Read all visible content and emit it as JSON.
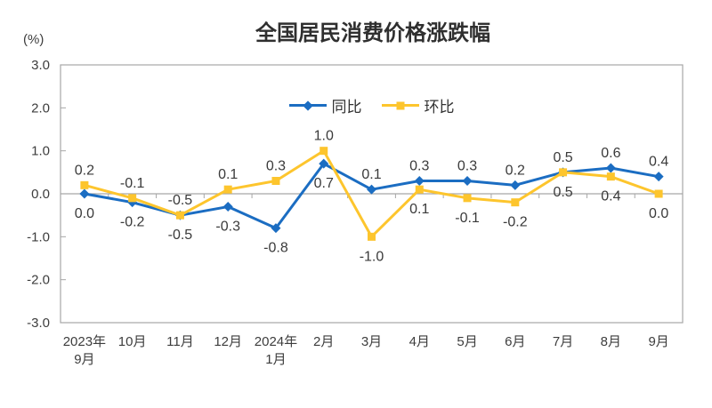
{
  "title": "全国居民消费价格涨跌幅",
  "y_axis": {
    "unit_label": "(%)",
    "tick_labels": [
      "3.0",
      "2.0",
      "1.0",
      "0.0",
      "-1.0",
      "-2.0",
      "-3.0"
    ]
  },
  "chart_data": {
    "type": "line",
    "title": "全国居民消费价格涨跌幅",
    "unit": "%",
    "categories": [
      "2023年\n9月",
      "10月",
      "11月",
      "12月",
      "2024年\n1月",
      "2月",
      "3月",
      "4月",
      "5月",
      "6月",
      "7月",
      "8月",
      "9月"
    ],
    "series": [
      {
        "name": "同比",
        "color": "#1b6dc2",
        "marker": "diamond",
        "values": [
          0.0,
          -0.2,
          -0.5,
          -0.3,
          -0.8,
          0.7,
          0.1,
          0.3,
          0.3,
          0.2,
          0.5,
          0.6,
          0.4
        ]
      },
      {
        "name": "环比",
        "color": "#fdc52d",
        "marker": "square",
        "values": [
          0.2,
          -0.1,
          -0.5,
          0.1,
          0.3,
          1.0,
          -1.0,
          0.1,
          -0.1,
          -0.2,
          0.5,
          0.4,
          0.0
        ]
      }
    ],
    "ylim": [
      -3.0,
      3.0
    ],
    "ytick_step": 1.0,
    "grid": false,
    "zero_line": true,
    "data_labels": true,
    "legend_position": "top-center-inside",
    "axis_color": "#a6a6a6",
    "text_color": "#3d3d3d",
    "label_color": "#3a3a3a"
  }
}
